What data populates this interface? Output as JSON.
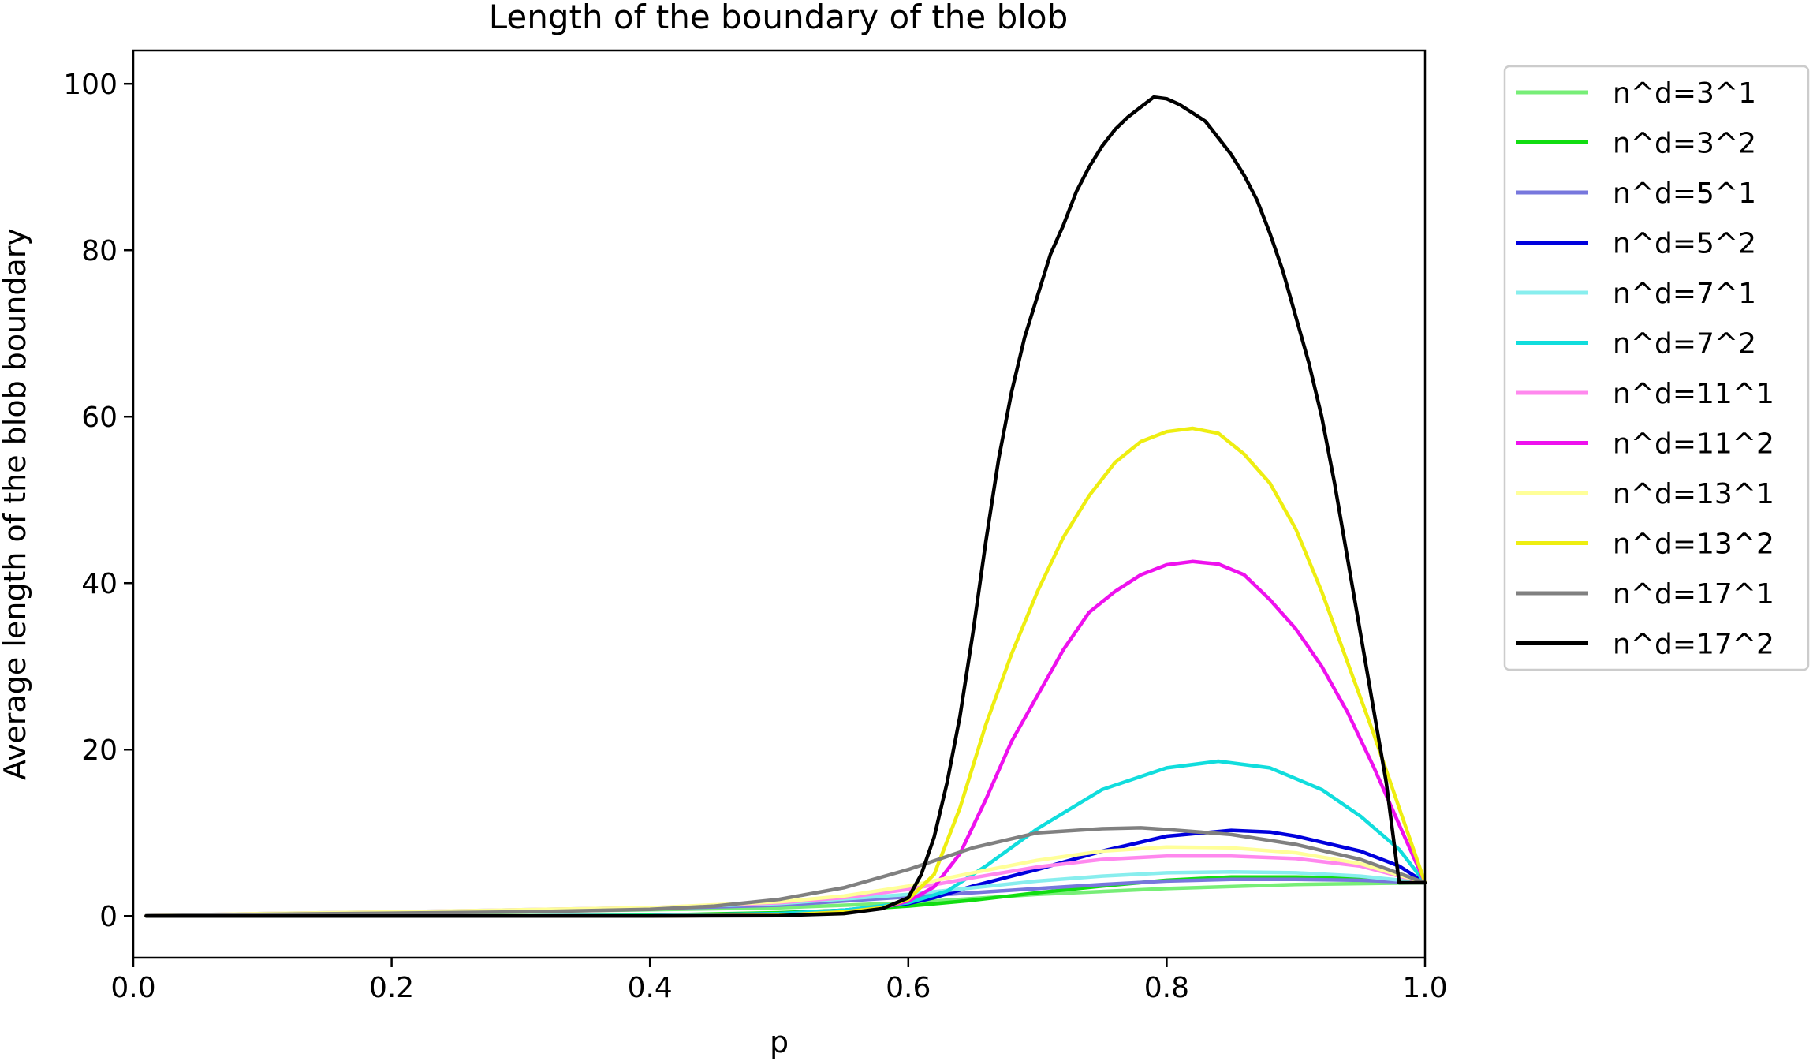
{
  "chart_data": {
    "type": "line",
    "title": "Length of the boundary of the blob",
    "xlabel": "p",
    "ylabel": "Average length of the blob boundary",
    "xlim": [
      0.0,
      1.0
    ],
    "ylim": [
      -5,
      104
    ],
    "xticks": [
      "0.0",
      "0.2",
      "0.4",
      "0.6",
      "0.8",
      "1.0"
    ],
    "yticks": [
      "0",
      "20",
      "40",
      "60",
      "80",
      "100"
    ],
    "grid": false,
    "legend_position": "outside-right",
    "series": [
      {
        "name": "n^d=3^1",
        "color": "#77ee77",
        "x": [
          0.01,
          0.1,
          0.2,
          0.3,
          0.4,
          0.5,
          0.6,
          0.7,
          0.8,
          0.9,
          1.0
        ],
        "y": [
          0.05,
          0.2,
          0.4,
          0.55,
          0.75,
          1.0,
          1.6,
          2.6,
          3.3,
          3.8,
          4.0
        ]
      },
      {
        "name": "n^d=3^2",
        "color": "#11dd11",
        "x": [
          0.01,
          0.1,
          0.2,
          0.3,
          0.4,
          0.5,
          0.55,
          0.6,
          0.65,
          0.7,
          0.75,
          0.8,
          0.85,
          0.9,
          0.95,
          1.0
        ],
        "y": [
          0.0,
          0.0,
          0.0,
          0.02,
          0.1,
          0.4,
          0.7,
          1.2,
          1.9,
          2.8,
          3.6,
          4.3,
          4.7,
          4.7,
          4.5,
          4.0
        ]
      },
      {
        "name": "n^d=5^1",
        "color": "#7777dd",
        "x": [
          0.01,
          0.1,
          0.2,
          0.3,
          0.4,
          0.5,
          0.6,
          0.7,
          0.75,
          0.8,
          0.85,
          0.9,
          0.95,
          1.0
        ],
        "y": [
          0.05,
          0.25,
          0.45,
          0.65,
          0.9,
          1.3,
          2.3,
          3.3,
          3.8,
          4.2,
          4.4,
          4.4,
          4.3,
          4.0
        ]
      },
      {
        "name": "n^d=5^2",
        "color": "#0000dd",
        "x": [
          0.01,
          0.1,
          0.2,
          0.3,
          0.4,
          0.5,
          0.55,
          0.6,
          0.62,
          0.65,
          0.7,
          0.75,
          0.8,
          0.85,
          0.88,
          0.9,
          0.95,
          0.98,
          1.0
        ],
        "y": [
          0.0,
          0.0,
          0.0,
          0.0,
          0.05,
          0.3,
          0.7,
          1.5,
          2.2,
          3.6,
          5.6,
          7.8,
          9.6,
          10.3,
          10.1,
          9.6,
          7.8,
          6.0,
          4.0
        ]
      },
      {
        "name": "n^d=7^1",
        "color": "#88eeee",
        "x": [
          0.01,
          0.1,
          0.2,
          0.3,
          0.4,
          0.5,
          0.6,
          0.65,
          0.7,
          0.75,
          0.8,
          0.85,
          0.9,
          0.95,
          1.0
        ],
        "y": [
          0.05,
          0.3,
          0.5,
          0.75,
          1.0,
          1.5,
          2.6,
          3.4,
          4.2,
          4.8,
          5.2,
          5.3,
          5.2,
          4.8,
          4.0
        ]
      },
      {
        "name": "n^d=7^2",
        "color": "#11dddd",
        "x": [
          0.01,
          0.1,
          0.2,
          0.3,
          0.4,
          0.5,
          0.55,
          0.6,
          0.63,
          0.66,
          0.7,
          0.75,
          0.8,
          0.84,
          0.88,
          0.92,
          0.95,
          0.98,
          1.0
        ],
        "y": [
          0.0,
          0.0,
          0.0,
          0.0,
          0.05,
          0.3,
          0.7,
          1.6,
          3.0,
          6.0,
          10.5,
          15.2,
          17.8,
          18.6,
          17.8,
          15.2,
          12.0,
          8.0,
          4.0
        ]
      },
      {
        "name": "n^d=11^1",
        "color": "#ff88ee",
        "x": [
          0.01,
          0.1,
          0.2,
          0.3,
          0.4,
          0.5,
          0.55,
          0.6,
          0.65,
          0.7,
          0.75,
          0.8,
          0.85,
          0.9,
          0.95,
          1.0
        ],
        "y": [
          0.05,
          0.3,
          0.5,
          0.75,
          1.0,
          1.6,
          2.2,
          3.2,
          4.6,
          5.9,
          6.8,
          7.2,
          7.2,
          6.9,
          6.0,
          4.0
        ]
      },
      {
        "name": "n^d=11^2",
        "color": "#ee11ee",
        "x": [
          0.01,
          0.1,
          0.2,
          0.3,
          0.4,
          0.5,
          0.55,
          0.58,
          0.6,
          0.62,
          0.64,
          0.66,
          0.68,
          0.7,
          0.72,
          0.74,
          0.76,
          0.78,
          0.8,
          0.82,
          0.84,
          0.86,
          0.88,
          0.9,
          0.92,
          0.94,
          0.96,
          0.98,
          1.0
        ],
        "y": [
          0.0,
          0.0,
          0.0,
          0.0,
          0.0,
          0.1,
          0.5,
          1.0,
          1.8,
          3.5,
          7.5,
          14.0,
          21.0,
          26.5,
          32.0,
          36.5,
          39.0,
          41.0,
          42.2,
          42.6,
          42.3,
          41.0,
          38.0,
          34.5,
          30.0,
          24.5,
          18.0,
          11.0,
          4.0
        ]
      },
      {
        "name": "n^d=13^1",
        "color": "#ffff99",
        "x": [
          0.01,
          0.1,
          0.2,
          0.3,
          0.4,
          0.5,
          0.55,
          0.6,
          0.65,
          0.7,
          0.75,
          0.8,
          0.85,
          0.9,
          0.95,
          1.0
        ],
        "y": [
          0.05,
          0.3,
          0.5,
          0.75,
          1.0,
          1.7,
          2.4,
          3.6,
          5.2,
          6.7,
          7.8,
          8.3,
          8.2,
          7.6,
          6.3,
          4.0
        ]
      },
      {
        "name": "n^d=13^2",
        "color": "#eeee11",
        "x": [
          0.01,
          0.1,
          0.2,
          0.3,
          0.4,
          0.5,
          0.55,
          0.58,
          0.6,
          0.62,
          0.64,
          0.66,
          0.68,
          0.7,
          0.72,
          0.74,
          0.76,
          0.78,
          0.8,
          0.82,
          0.84,
          0.86,
          0.88,
          0.9,
          0.92,
          0.94,
          0.96,
          0.98,
          1.0
        ],
        "y": [
          0.0,
          0.0,
          0.0,
          0.0,
          0.0,
          0.1,
          0.5,
          1.0,
          2.0,
          5.0,
          13.0,
          23.0,
          31.5,
          39.0,
          45.5,
          50.5,
          54.5,
          57.0,
          58.2,
          58.6,
          58.0,
          55.5,
          52.0,
          46.5,
          39.0,
          30.5,
          22.0,
          13.0,
          4.0
        ]
      },
      {
        "name": "n^d=17^1",
        "color": "#808080",
        "x": [
          0.01,
          0.1,
          0.2,
          0.3,
          0.4,
          0.45,
          0.5,
          0.55,
          0.6,
          0.65,
          0.7,
          0.75,
          0.78,
          0.8,
          0.85,
          0.9,
          0.95,
          1.0
        ],
        "y": [
          0.05,
          0.2,
          0.35,
          0.5,
          0.8,
          1.2,
          2.0,
          3.4,
          5.6,
          8.2,
          10.0,
          10.5,
          10.6,
          10.4,
          9.8,
          8.6,
          6.8,
          4.0
        ]
      },
      {
        "name": "n^d=17^2",
        "color": "#000000",
        "x": [
          0.01,
          0.1,
          0.2,
          0.3,
          0.4,
          0.5,
          0.55,
          0.58,
          0.6,
          0.61,
          0.62,
          0.63,
          0.64,
          0.65,
          0.66,
          0.67,
          0.68,
          0.69,
          0.7,
          0.71,
          0.72,
          0.73,
          0.74,
          0.75,
          0.76,
          0.77,
          0.78,
          0.79,
          0.8,
          0.81,
          0.82,
          0.83,
          0.84,
          0.85,
          0.86,
          0.87,
          0.88,
          0.89,
          0.9,
          0.91,
          0.92,
          0.93,
          0.94,
          0.95,
          0.96,
          0.97,
          0.98,
          0.99,
          1.0
        ],
        "y": [
          0.0,
          0.0,
          0.0,
          0.0,
          0.0,
          0.05,
          0.3,
          0.9,
          2.2,
          5.0,
          9.5,
          16.0,
          24.0,
          34.0,
          45.0,
          55.0,
          63.0,
          69.5,
          74.5,
          79.5,
          83.0,
          87.0,
          90.0,
          92.5,
          94.5,
          96.0,
          97.2,
          98.4,
          98.2,
          97.5,
          96.5,
          95.5,
          93.5,
          91.5,
          89.0,
          86.0,
          82.0,
          77.5,
          72.0,
          66.5,
          60.0,
          52.0,
          43.0,
          34.0,
          25.0,
          16.0,
          4.0,
          4.0,
          4.0
        ]
      }
    ]
  }
}
